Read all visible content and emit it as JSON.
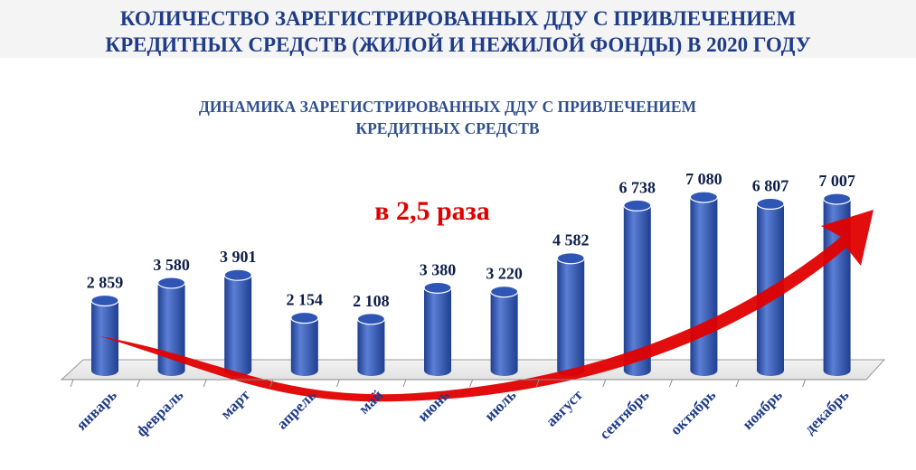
{
  "header": {
    "title_line1": "КОЛИЧЕСТВО ЗАРЕГИСТРИРОВАННЫХ ДДУ С ПРИВЛЕЧЕНИЕМ",
    "title_line2": "КРЕДИТНЫХ СРЕДСТВ (ЖИЛОЙ И НЕЖИЛОЙ ФОНДЫ) В 2020 ГОДУ"
  },
  "chart_data": {
    "type": "bar",
    "title_line1": "ДИНАМИКА ЗАРЕГИСТРИРОВАННЫХ ДДУ С ПРИВЛЕЧЕНИЕМ",
    "title_line2": "КРЕДИТНЫХ СРЕДСТВ",
    "categories": [
      "январь",
      "февраль",
      "март",
      "апрель",
      "май",
      "июнь",
      "июль",
      "август",
      "сентябрь",
      "октябрь",
      "ноябрь",
      "декабрь"
    ],
    "values": [
      2859,
      3580,
      3901,
      2154,
      2108,
      3380,
      3220,
      4582,
      6738,
      7080,
      6807,
      7007
    ],
    "value_labels": [
      "2 859",
      "3 580",
      "3 901",
      "2 154",
      "2 108",
      "3 380",
      "3 220",
      "4 582",
      "6 738",
      "7 080",
      "6 807",
      "7 007"
    ],
    "annotation": "в 2,5 раза",
    "ylim": [
      0,
      7080
    ],
    "grid": false,
    "colors": {
      "bar": "#1f3f8f",
      "bar_highlight": "#5b7fd6",
      "bar_top": "#2f55b5",
      "label": "#0f1f4a",
      "axis_label": "#1f3c88",
      "arrow": "#e00000",
      "annotation": "#e00000"
    }
  }
}
